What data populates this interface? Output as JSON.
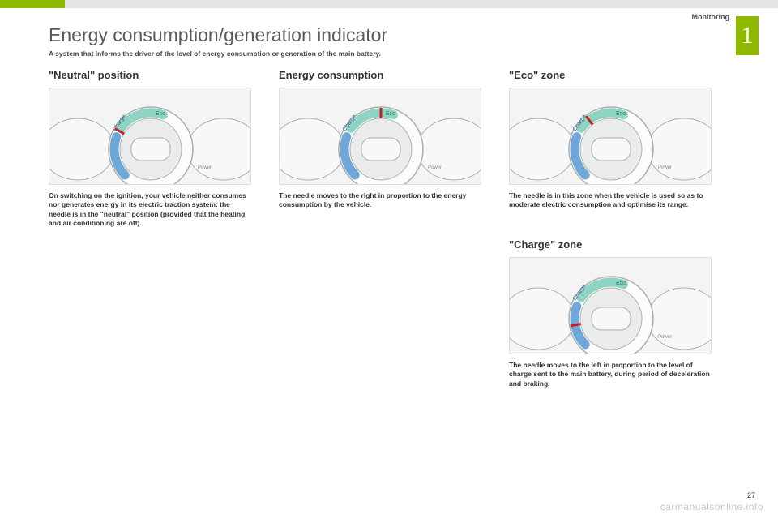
{
  "category": "Monitoring",
  "badge": "1",
  "page_number": "27",
  "watermark": "carmanualsonline.info",
  "title": "Energy consumption/generation indicator",
  "subtitle": "A system that informs the driver of the level of energy consumption or generation of the main battery.",
  "sections": {
    "neutral": {
      "heading": "\"Neutral\" position",
      "caption": "On switching on the ignition, your vehicle neither consumes nor generates energy in its electric traction system: the needle is in the \"neutral\" position (provided that the heating and air conditioning are off)."
    },
    "consumption": {
      "heading": "Energy consumption",
      "caption": "The needle moves to the right in proportion to the energy consumption by the vehicle."
    },
    "eco": {
      "heading": "\"Eco\" zone",
      "caption": "The needle is in this zone when the vehicle is used so as to moderate electric consumption and optimise its range."
    },
    "charge": {
      "heading": "\"Charge\" zone",
      "caption": "The needle moves to the left in proportion to the level of charge sent to the main battery, during period of deceleration and braking."
    }
  },
  "gauge": {
    "labels": {
      "charge": "Charge",
      "eco": "Eco",
      "power": "Power"
    },
    "colors": {
      "background": "#f4f4f4",
      "ring": "#e9eceb",
      "charge_arc": "#6fa8d8",
      "eco_arc": "#8fd4c2",
      "needle": "#c81e1e",
      "outline": "#a7b0ac"
    },
    "needle_angle": {
      "neutral": -60,
      "consumption": 0,
      "eco": -37,
      "charge": -100
    }
  }
}
